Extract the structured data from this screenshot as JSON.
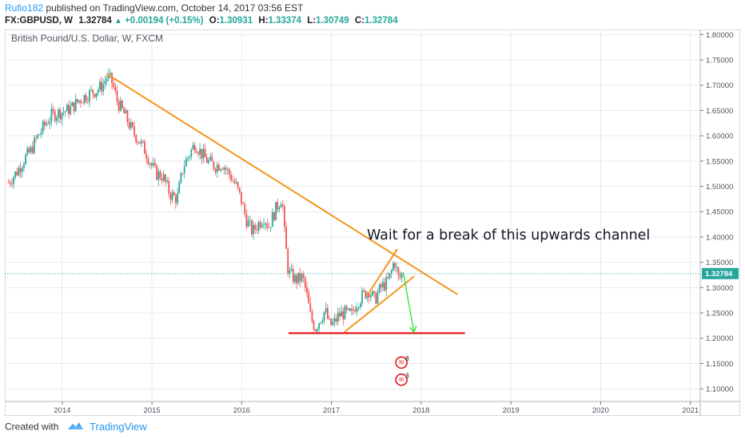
{
  "header": {
    "author": "Rufio182",
    "published": "published on TradingView.com, October 14, 2017 03:56 EST",
    "symbol": "FX:GBPUSD, W",
    "last": "1.32784",
    "change": "+0.00194 (+0.15%)",
    "open_label": "O:",
    "open": "1.30931",
    "high_label": "H:",
    "high": "1.33374",
    "low_label": "L:",
    "low": "1.30749",
    "close_label": "C:",
    "close": "1.32784"
  },
  "footer": {
    "created_with": "Created with",
    "brand": "TradingView"
  },
  "colors": {
    "up": "#26a69a",
    "down": "#ef5350",
    "trendline": "#f7941d",
    "support": "#e5161d",
    "arrow": "#3ae23a",
    "price_line": "#26a69a",
    "grid": "#e6e9ee"
  },
  "icons": {
    "logo": "tradingview-cloud-icon",
    "up_arrow": "triangle-up-icon"
  },
  "chart_data": {
    "type": "candlestick",
    "title": "British Pound/U.S. Dollar, W, FXCM",
    "x_ticks": [
      "2014",
      "2015",
      "2016",
      "2017",
      "2018",
      "2019",
      "2020",
      "2021"
    ],
    "y_ticks": [
      "1.80000",
      "1.75000",
      "1.70000",
      "1.65000",
      "1.60000",
      "1.55000",
      "1.50000",
      "1.45000",
      "1.40000",
      "1.35000",
      "1.30000",
      "1.25000",
      "1.20000",
      "1.15000",
      "1.10000"
    ],
    "ylim": [
      1.075,
      1.81
    ],
    "xlim": [
      2013.36,
      2021.11
    ],
    "current_price": 1.32784,
    "current_price_label": "1.32784",
    "price_anchors": [
      [
        2013.4,
        1.508
      ],
      [
        2013.5,
        1.53
      ],
      [
        2013.58,
        1.555
      ],
      [
        2013.65,
        1.57
      ],
      [
        2013.7,
        1.59
      ],
      [
        2013.8,
        1.62
      ],
      [
        2013.88,
        1.64
      ],
      [
        2013.95,
        1.645
      ],
      [
        2014.05,
        1.65
      ],
      [
        2014.1,
        1.655
      ],
      [
        2014.2,
        1.672
      ],
      [
        2014.3,
        1.683
      ],
      [
        2014.38,
        1.69
      ],
      [
        2014.45,
        1.7
      ],
      [
        2014.5,
        1.717
      ],
      [
        2014.55,
        1.708
      ],
      [
        2014.62,
        1.665
      ],
      [
        2014.7,
        1.64
      ],
      [
        2014.78,
        1.61
      ],
      [
        2014.86,
        1.59
      ],
      [
        2014.94,
        1.565
      ],
      [
        2015.0,
        1.54
      ],
      [
        2015.05,
        1.525
      ],
      [
        2015.12,
        1.52
      ],
      [
        2015.2,
        1.485
      ],
      [
        2015.28,
        1.475
      ],
      [
        2015.35,
        1.54
      ],
      [
        2015.42,
        1.565
      ],
      [
        2015.48,
        1.585
      ],
      [
        2015.55,
        1.565
      ],
      [
        2015.62,
        1.55
      ],
      [
        2015.7,
        1.54
      ],
      [
        2015.78,
        1.545
      ],
      [
        2015.86,
        1.525
      ],
      [
        2015.94,
        1.5
      ],
      [
        2016.0,
        1.47
      ],
      [
        2016.05,
        1.435
      ],
      [
        2016.12,
        1.41
      ],
      [
        2016.18,
        1.425
      ],
      [
        2016.25,
        1.44
      ],
      [
        2016.3,
        1.42
      ],
      [
        2016.38,
        1.455
      ],
      [
        2016.45,
        1.48
      ],
      [
        2016.48,
        1.4
      ],
      [
        2016.52,
        1.33
      ],
      [
        2016.6,
        1.315
      ],
      [
        2016.68,
        1.32
      ],
      [
        2016.72,
        1.29
      ],
      [
        2016.77,
        1.24
      ],
      [
        2016.82,
        1.22
      ],
      [
        2016.88,
        1.24
      ],
      [
        2016.93,
        1.255
      ],
      [
        2016.98,
        1.225
      ],
      [
        2017.03,
        1.23
      ],
      [
        2017.08,
        1.245
      ],
      [
        2017.15,
        1.25
      ],
      [
        2017.22,
        1.245
      ],
      [
        2017.28,
        1.27
      ],
      [
        2017.35,
        1.285
      ],
      [
        2017.42,
        1.295
      ],
      [
        2017.48,
        1.275
      ],
      [
        2017.55,
        1.3
      ],
      [
        2017.62,
        1.31
      ],
      [
        2017.66,
        1.325
      ],
      [
        2017.7,
        1.355
      ],
      [
        2017.72,
        1.34
      ],
      [
        2017.75,
        1.315
      ],
      [
        2017.79,
        1.328
      ]
    ],
    "annotations": {
      "text": "Wait for a break of this upwards channel",
      "event_badge_top": "8",
      "event_badge_bottom": "3",
      "lines": [
        {
          "name": "long-term-downtrend",
          "color": "#f7941d",
          "from": [
            2014.5,
            1.722
          ],
          "to": [
            2018.4,
            1.287
          ]
        },
        {
          "name": "channel-upper",
          "color": "#f7941d",
          "from": [
            2017.4,
            1.285
          ],
          "to": [
            2017.73,
            1.375
          ]
        },
        {
          "name": "channel-lower",
          "color": "#f7941d",
          "from": [
            2017.15,
            1.213
          ],
          "to": [
            2017.92,
            1.322
          ]
        },
        {
          "name": "support-line",
          "color": "#e5161d",
          "from": [
            2016.53,
            1.21
          ],
          "to": [
            2018.48,
            1.21
          ]
        },
        {
          "name": "projection-arrow",
          "color": "#3ae23a",
          "from": [
            2017.8,
            1.33
          ],
          "to": [
            2017.92,
            1.212
          ]
        }
      ]
    }
  }
}
